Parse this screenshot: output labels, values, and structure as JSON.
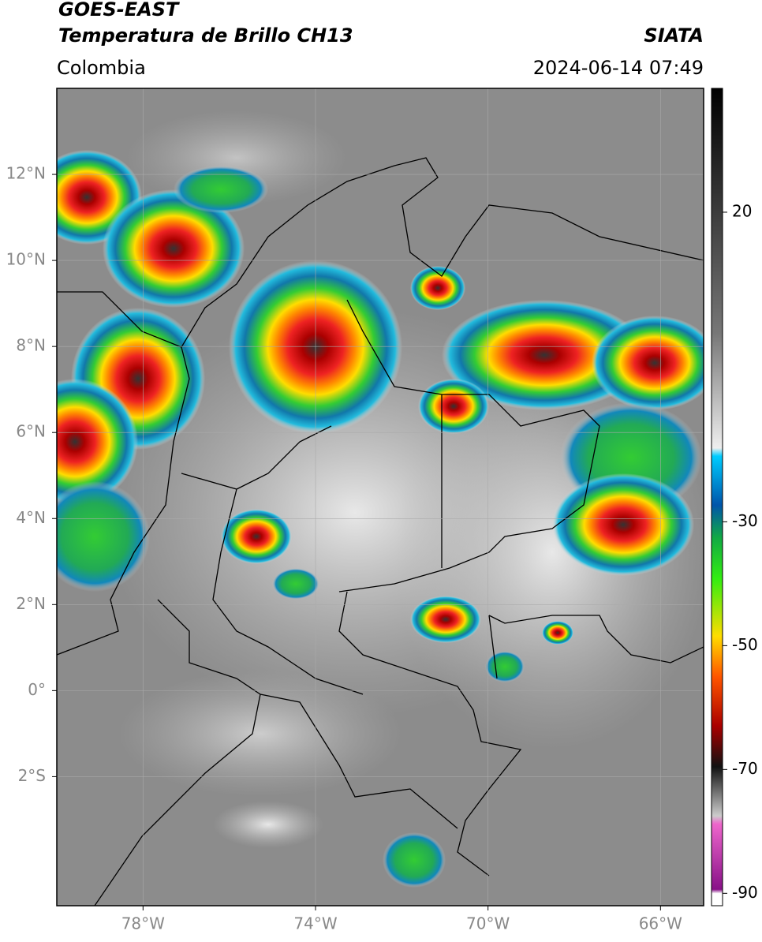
{
  "header": {
    "title": "GOES-EAST",
    "subtitle": "Temperatura de Brillo CH13",
    "source": "SIATA",
    "region": "Colombia",
    "datetime": "2024-06-14 07:49"
  },
  "map": {
    "xlim": [
      -80,
      -65
    ],
    "ylim": [
      -5,
      14
    ],
    "xticks": [
      {
        "value": -78,
        "label": "78°W"
      },
      {
        "value": -74,
        "label": "74°W"
      },
      {
        "value": -70,
        "label": "70°W"
      },
      {
        "value": -66,
        "label": "66°W"
      }
    ],
    "yticks": [
      {
        "value": 12,
        "label": "12°N"
      },
      {
        "value": 10,
        "label": "10°N"
      },
      {
        "value": 8,
        "label": "8°N"
      },
      {
        "value": 6,
        "label": "6°N"
      },
      {
        "value": 4,
        "label": "4°N"
      },
      {
        "value": 2,
        "label": "2°N"
      },
      {
        "value": 0,
        "label": "0°"
      },
      {
        "value": -2,
        "label": "2°S"
      }
    ],
    "grid": true
  },
  "colorbar": {
    "lim": [
      -92,
      40
    ],
    "ticks": [
      20,
      -30,
      -50,
      -70,
      -90
    ]
  }
}
